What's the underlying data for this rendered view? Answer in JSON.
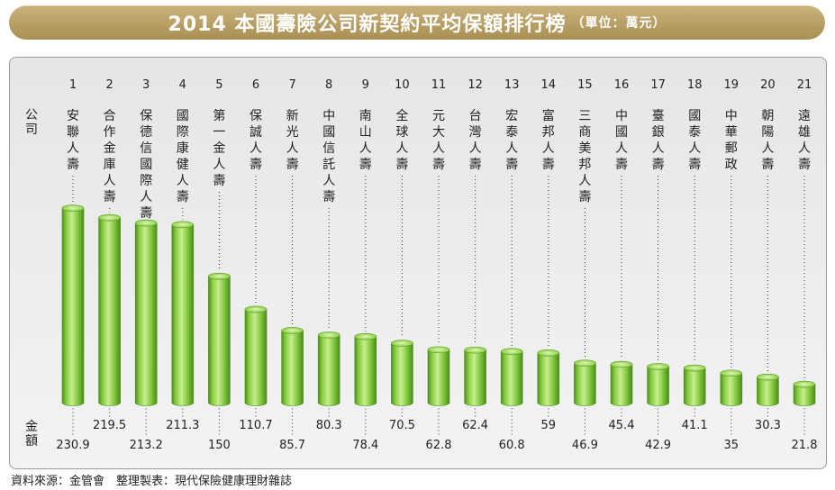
{
  "title": "2014 本國壽險公司新契約平均保額排行榜",
  "unit": "（單位：萬元）",
  "footnote": "資料來源：金管會　整理製表：現代保險健康理財雜誌",
  "colors": {
    "title_bar": "#b79e63",
    "bar": "#7fc63d",
    "bar_light": "#c6ec8d",
    "bar_dark": "#4f8f1c"
  },
  "chart_data": {
    "type": "bar",
    "title": "2014 本國壽險公司新契約平均保額排行榜",
    "xlabel": "公司",
    "ylabel": "金額",
    "unit": "萬元",
    "ranks": [
      "1",
      "2",
      "3",
      "4",
      "5",
      "6",
      "7",
      "8",
      "9",
      "10",
      "11",
      "12",
      "13",
      "14",
      "15",
      "16",
      "17",
      "18",
      "19",
      "20",
      "21"
    ],
    "categories": [
      "安聯人壽",
      "合作金庫人壽",
      "保德信國際人壽",
      "國際康健人壽",
      "第一金人壽",
      "保誠人壽",
      "新光人壽",
      "中國信託人壽",
      "南山人壽",
      "全球人壽",
      "元大人壽",
      "台灣人壽",
      "宏泰人壽",
      "富邦人壽",
      "三商美邦人壽",
      "中國人壽",
      "臺銀人壽",
      "國泰人壽",
      "中華郵政",
      "朝陽人壽",
      "遠雄人壽"
    ],
    "values": [
      230.9,
      219.5,
      213.2,
      211.3,
      150,
      110.7,
      85.7,
      80.3,
      78.4,
      70.5,
      62.8,
      62.4,
      60.8,
      59,
      46.9,
      45.4,
      42.9,
      41.1,
      35,
      30.3,
      21.8
    ],
    "value_labels": [
      "230.9",
      "219.5",
      "213.2",
      "211.3",
      "150",
      "110.7",
      "85.7",
      "80.3",
      "78.4",
      "70.5",
      "62.8",
      "62.4",
      "60.8",
      "59",
      "46.9",
      "45.4",
      "42.9",
      "41.1",
      "35",
      "30.3",
      "21.8"
    ],
    "ylim": [
      0,
      230.9
    ],
    "grid": false,
    "legend": "none"
  }
}
